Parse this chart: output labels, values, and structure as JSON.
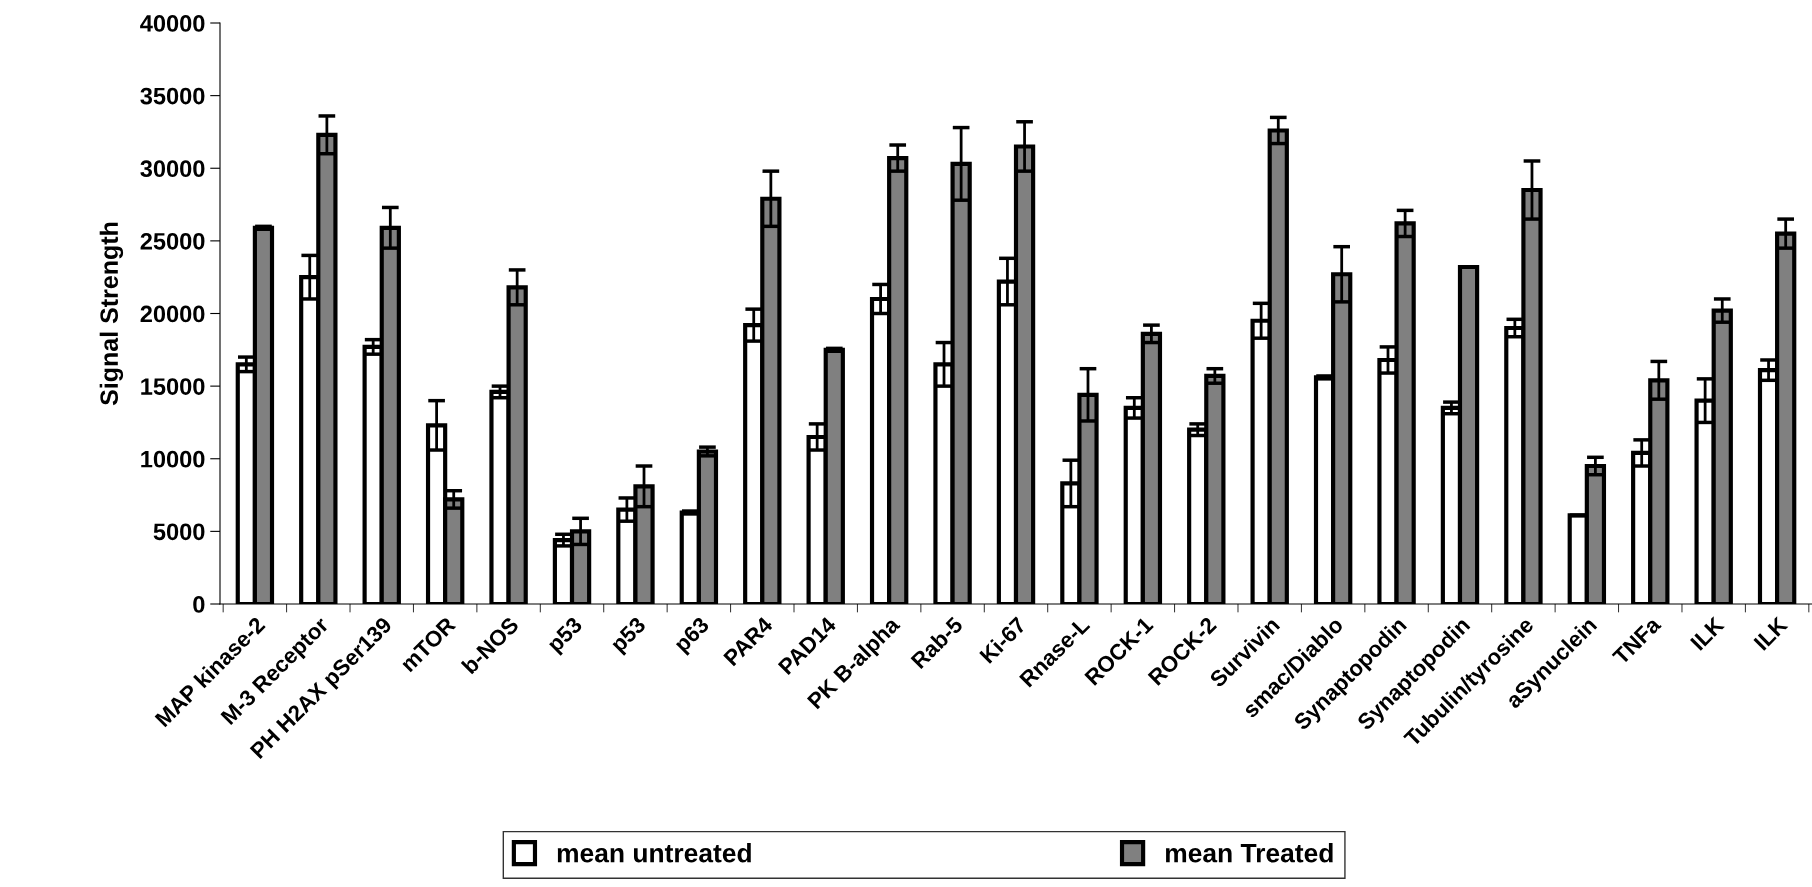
{
  "chart_data": {
    "type": "bar",
    "ylabel": "Signal Strength",
    "categories": [
      "MAP kinase-2",
      "M-3 Receptor",
      "PH H2AX pSer139",
      "mTOR",
      "b-NOS",
      "p53",
      "p53",
      "p63",
      "PAR4",
      "PAD14",
      "PK B-alpha",
      "Rab-5",
      "Ki-67",
      "Rnase-L",
      "ROCK-1",
      "ROCK-2",
      "Survivin",
      "smac/Diablo",
      "Synaptopodin",
      "Synaptopodin",
      "Tubulin/tyrosine",
      "aSynuclein",
      "TNFa",
      "ILK",
      "ILK"
    ],
    "series": [
      {
        "name": "mean untreated",
        "color": "#ffffff",
        "values": [
          16500,
          22500,
          17700,
          12300,
          14600,
          4400,
          6500,
          6300,
          19200,
          11500,
          21000,
          16500,
          22200,
          8300,
          13500,
          12000,
          19500,
          15600,
          16800,
          13500,
          19000,
          6100,
          10400,
          14000,
          16100
        ],
        "errors": [
          500,
          1500,
          500,
          1700,
          400,
          400,
          800,
          100,
          1100,
          900,
          1000,
          1500,
          1600,
          1600,
          700,
          400,
          1200,
          100,
          900,
          400,
          600,
          0,
          900,
          1500,
          700
        ]
      },
      {
        "name": "mean Treated",
        "color": "#808080",
        "values": [
          25900,
          32300,
          25900,
          7200,
          21800,
          5000,
          8100,
          10500,
          27900,
          17500,
          30700,
          30300,
          31500,
          14400,
          18600,
          15700,
          32600,
          22700,
          26200,
          23200,
          28500,
          9500,
          15400,
          20200,
          25500
        ],
        "errors": [
          100,
          1300,
          1400,
          600,
          1200,
          900,
          1400,
          300,
          1900,
          100,
          900,
          2500,
          1700,
          1800,
          600,
          500,
          900,
          1900,
          900,
          0,
          2000,
          600,
          1300,
          800,
          1000
        ]
      }
    ],
    "ylim": [
      0,
      40000
    ],
    "yticks": [
      0,
      5000,
      10000,
      15000,
      20000,
      25000,
      30000,
      35000,
      40000
    ],
    "grid": false,
    "legend": "bottom"
  }
}
